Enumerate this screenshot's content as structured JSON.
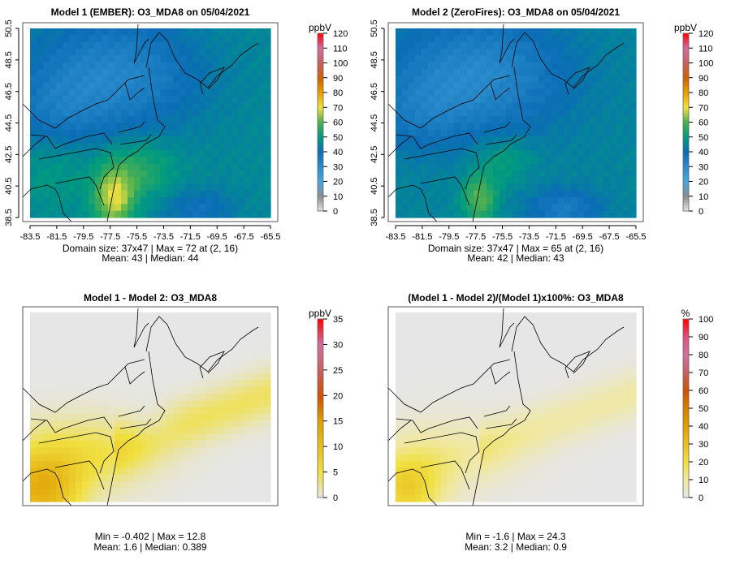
{
  "panels": [
    {
      "id": "model1",
      "title": "Model 1 (EMBER): O3_MDA8 on 05/04/2021",
      "unit": "ppbV",
      "colorbar": {
        "min": 0,
        "max": 120,
        "ticks": [
          "0",
          "10",
          "20",
          "30",
          "40",
          "50",
          "60",
          "70",
          "80",
          "90",
          "100",
          "110",
          "120"
        ],
        "stops": [
          "#e6e6e6",
          "#8c8c8c",
          "#4aa8e0",
          "#2a8ccc",
          "#0a6db5",
          "#009a80",
          "#4cb050",
          "#f0e040",
          "#e8a000",
          "#d06000",
          "#c86060",
          "#d070a0",
          "#ff0000"
        ]
      },
      "field": "model1",
      "x_ticks": [
        "-83.5",
        "-81.5",
        "-79.5",
        "-77.5",
        "-75.5",
        "-73.5",
        "-71.5",
        "-69.5",
        "-67.5",
        "-65.5"
      ],
      "y_ticks": [
        "38.5",
        "40.5",
        "42.5",
        "44.5",
        "46.5",
        "48.5",
        "50.5"
      ],
      "stats": [
        "Domain size: 37x47 | Max = 72 at (2, 16)",
        "Mean: 43 |  Median: 44"
      ]
    },
    {
      "id": "model2",
      "title": "Model 2 (ZeroFires): O3_MDA8 on 05/04/2021",
      "unit": "ppbV",
      "colorbar": {
        "min": 0,
        "max": 120,
        "ticks": [
          "0",
          "10",
          "20",
          "30",
          "40",
          "50",
          "60",
          "70",
          "80",
          "90",
          "100",
          "110",
          "120"
        ],
        "stops": [
          "#e6e6e6",
          "#8c8c8c",
          "#4aa8e0",
          "#2a8ccc",
          "#0a6db5",
          "#009a80",
          "#4cb050",
          "#f0e040",
          "#e8a000",
          "#d06000",
          "#c86060",
          "#d070a0",
          "#ff0000"
        ]
      },
      "field": "model2",
      "x_ticks": [
        "-83.5",
        "-81.5",
        "-79.5",
        "-77.5",
        "-75.5",
        "-73.5",
        "-71.5",
        "-69.5",
        "-67.5",
        "-65.5"
      ],
      "y_ticks": [
        "38.5",
        "40.5",
        "42.5",
        "44.5",
        "46.5",
        "48.5",
        "50.5"
      ],
      "stats": [
        "Domain size: 37x47 | Max = 65 at (2, 16)",
        "Mean: 42 |  Median: 43"
      ]
    },
    {
      "id": "diff",
      "title": "Model 1 - Model 2: O3_MDA8",
      "unit": "ppbV",
      "colorbar": {
        "min": 0,
        "max": 35,
        "ticks": [
          "0",
          "5",
          "10",
          "15",
          "20",
          "25",
          "30",
          "35"
        ],
        "stops": [
          "#e6e6e6",
          "#f0e040",
          "#e8c020",
          "#e0a000",
          "#d05000",
          "#c86060",
          "#d070a0",
          "#ff0000"
        ]
      },
      "field": "diff",
      "x_ticks": [],
      "y_ticks": [],
      "stats": [
        "Min = -0.402 | Max = 12.8",
        "Mean: 1.6 |  Median: 0.389"
      ]
    },
    {
      "id": "pctdiff",
      "title": "(Model 1 - Model 2)/(Model 1)x100%: O3_MDA8",
      "unit": "%",
      "colorbar": {
        "min": 0,
        "max": 100,
        "ticks": [
          "0",
          "10",
          "20",
          "30",
          "40",
          "50",
          "60",
          "70",
          "80",
          "90",
          "100"
        ],
        "stops": [
          "#e6e6e6",
          "#f0e8a0",
          "#f0e040",
          "#e8c020",
          "#e0a000",
          "#d88000",
          "#d05000",
          "#c86060",
          "#d070a0",
          "#e05080",
          "#ff0000"
        ]
      },
      "field": "pct",
      "x_ticks": [],
      "y_ticks": [],
      "stats": [
        "Min = -1.6 | Max = 24.3",
        "Mean: 3.2 |  Median: 0.9"
      ]
    }
  ]
}
